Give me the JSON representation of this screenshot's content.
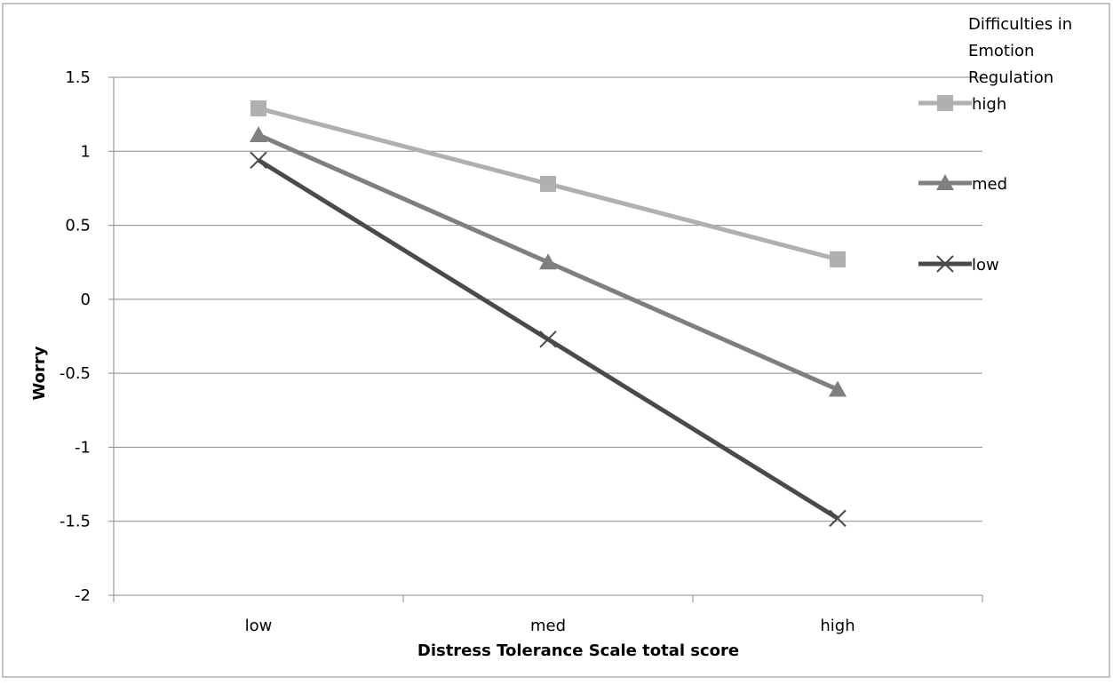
{
  "chart_data": {
    "type": "line",
    "title": "",
    "xlabel": "Distress Tolerance Scale total score",
    "ylabel": "Worry",
    "categories": [
      "low",
      "med",
      "high"
    ],
    "ylim": [
      -2,
      1.5
    ],
    "yticks": [
      -2,
      -1.5,
      -1,
      -0.5,
      0,
      0.5,
      1,
      1.5
    ],
    "ytick_labels": [
      "-2",
      "-1.5",
      "-1",
      "-0.5",
      "0",
      "0.5",
      "1",
      "1.5"
    ],
    "grid": true,
    "legend_position": "right",
    "legend_title": [
      "Difficulties in",
      "Emotion",
      "Regulation"
    ],
    "series": [
      {
        "name": "high",
        "values": [
          1.29,
          0.78,
          0.27
        ],
        "color": "#b0b0b0",
        "marker": "square"
      },
      {
        "name": "med",
        "values": [
          1.11,
          0.25,
          -0.61
        ],
        "color": "#7f7f7f",
        "marker": "triangle"
      },
      {
        "name": "low",
        "values": [
          0.94,
          -0.27,
          -1.48
        ],
        "color": "#4a4a4a",
        "marker": "x"
      }
    ]
  }
}
